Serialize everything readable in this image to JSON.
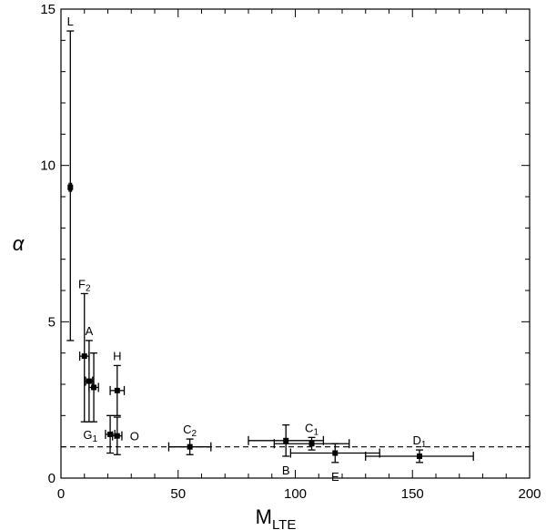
{
  "chart_data": {
    "type": "scatter",
    "xlabel": "M",
    "xlabel_sub": "LTE",
    "ylabel": "α",
    "xlim": [
      0,
      200
    ],
    "ylim": [
      0,
      15
    ],
    "xticks": [
      0,
      50,
      100,
      150,
      200
    ],
    "yticks": [
      0,
      5,
      10,
      15
    ],
    "x_minor_step": 10,
    "y_minor_step": 1,
    "reference_line": {
      "y": 1.0,
      "style": "dashed"
    },
    "points": [
      {
        "label": "L",
        "sub": "",
        "x": 4,
        "y": 9.3,
        "xerr": [
          0.5,
          0.5
        ],
        "yerr": [
          4.9,
          5.0
        ]
      },
      {
        "label": "F",
        "sub": "2",
        "x": 10,
        "y": 3.9,
        "xerr": [
          2,
          2
        ],
        "yerr": [
          2.1,
          2.0
        ]
      },
      {
        "label": "A",
        "sub": "",
        "x": 12,
        "y": 3.1,
        "xerr": [
          1.5,
          1.5
        ],
        "yerr": [
          1.3,
          1.3
        ]
      },
      {
        "label": "",
        "sub": "",
        "x": 14,
        "y": 2.9,
        "xerr": [
          2,
          2
        ],
        "yerr": [
          1.1,
          1.1
        ]
      },
      {
        "label": "H",
        "sub": "",
        "x": 24,
        "y": 2.8,
        "xerr": [
          3,
          3
        ],
        "yerr": [
          0.8,
          0.8
        ]
      },
      {
        "label": "G",
        "sub": "1",
        "x": 21,
        "y": 1.4,
        "xerr": [
          2,
          2
        ],
        "yerr": [
          0.6,
          0.6
        ]
      },
      {
        "label": "O",
        "sub": "",
        "x": 24,
        "y": 1.35,
        "xerr": [
          2,
          2
        ],
        "yerr": [
          0.6,
          0.6
        ]
      },
      {
        "label": "C",
        "sub": "2",
        "x": 55,
        "y": 1.0,
        "xerr": [
          9,
          9
        ],
        "yerr": [
          0.25,
          0.25
        ]
      },
      {
        "label": "B",
        "sub": "",
        "x": 96,
        "y": 1.2,
        "xerr": [
          16,
          16
        ],
        "yerr": [
          0.5,
          0.5
        ]
      },
      {
        "label": "C",
        "sub": "1",
        "x": 107,
        "y": 1.1,
        "xerr": [
          16,
          16
        ],
        "yerr": [
          0.2,
          0.2
        ]
      },
      {
        "label": "E",
        "sub": "",
        "x": 117,
        "y": 0.8,
        "xerr": [
          19,
          19
        ],
        "yerr": [
          0.3,
          0.3
        ]
      },
      {
        "label": "D",
        "sub": "1",
        "x": 153,
        "y": 0.7,
        "xerr": [
          23,
          23
        ],
        "yerr": [
          0.2,
          0.2
        ]
      }
    ]
  }
}
